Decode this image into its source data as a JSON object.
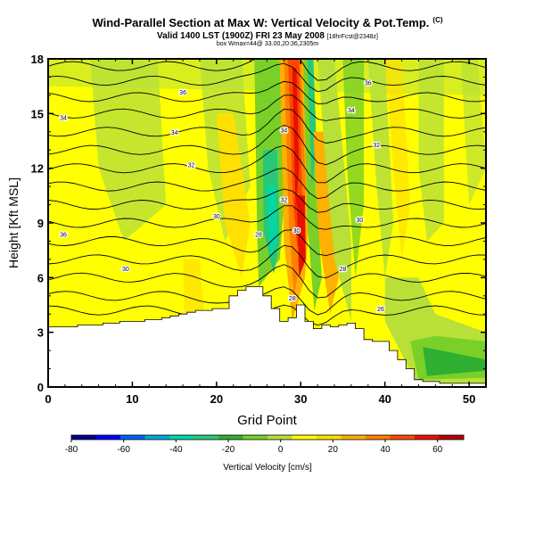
{
  "title": {
    "main": "Wind-Parallel Section at Max W: Vertical Velocity & Pot.Temp.",
    "copyright": "(C)",
    "valid": "Valid 1400 LST (1900Z) FRI 23 May 2008",
    "forecast": "[18hrFcst@2348z]",
    "location": "box Wmax=44@ 33.00,20:36,2305m"
  },
  "chart_data": {
    "type": "heatmap",
    "xlabel": "Grid Point",
    "ylabel": "Height [Kft MSL]",
    "xlim": [
      0,
      52
    ],
    "ylim": [
      0,
      18
    ],
    "xticks": [
      "0",
      "10",
      "20",
      "30",
      "40",
      "50"
    ],
    "yticks": [
      "0",
      "3",
      "6",
      "9",
      "12",
      "15",
      "18"
    ],
    "colorbar": {
      "label": "Vertical Velocity [cm/s]",
      "range": [
        -80,
        70
      ],
      "ticks": [
        "-80",
        "-60",
        "-40",
        "-20",
        "0",
        "20",
        "40",
        "60"
      ],
      "colors": [
        "#00008b",
        "#0000ff",
        "#0060ff",
        "#00a8d8",
        "#00d8a8",
        "#28c878",
        "#30b030",
        "#78d028",
        "#b8e038",
        "#ffff00",
        "#ffe000",
        "#ffb000",
        "#ff8000",
        "#ff4800",
        "#e81000",
        "#b80000"
      ]
    },
    "contour_labels": [
      {
        "x": 1.8,
        "y": 14.8,
        "text": "34"
      },
      {
        "x": 16,
        "y": 16.2,
        "text": "36"
      },
      {
        "x": 15,
        "y": 14.0,
        "text": "34"
      },
      {
        "x": 17,
        "y": 12.2,
        "text": "32"
      },
      {
        "x": 1.8,
        "y": 8.4,
        "text": "36"
      },
      {
        "x": 9.2,
        "y": 6.5,
        "text": "30"
      },
      {
        "x": 20,
        "y": 9.4,
        "text": "30"
      },
      {
        "x": 25,
        "y": 8.4,
        "text": "28"
      },
      {
        "x": 28,
        "y": 14.1,
        "text": "34"
      },
      {
        "x": 28,
        "y": 10.3,
        "text": "32"
      },
      {
        "x": 29.5,
        "y": 8.6,
        "text": "30"
      },
      {
        "x": 29,
        "y": 4.9,
        "text": "28"
      },
      {
        "x": 38,
        "y": 16.7,
        "text": "36"
      },
      {
        "x": 36,
        "y": 15.2,
        "text": "34"
      },
      {
        "x": 39,
        "y": 13.3,
        "text": "32"
      },
      {
        "x": 37,
        "y": 9.2,
        "text": "30"
      },
      {
        "x": 35,
        "y": 6.5,
        "text": "28"
      },
      {
        "x": 39.5,
        "y": 4.3,
        "text": "26"
      }
    ],
    "terrain_top_kft": [
      3.3,
      3.3,
      3.3,
      3.3,
      3.4,
      3.4,
      3.4,
      3.5,
      3.5,
      3.6,
      3.6,
      3.6,
      3.7,
      3.7,
      3.8,
      3.9,
      4.0,
      4.1,
      4.2,
      4.2,
      4.3,
      4.3,
      5.0,
      5.3,
      5.5,
      5.5,
      5.0,
      4.3,
      3.6,
      3.8,
      4.5,
      3.6,
      3.2,
      3.4,
      3.3,
      3.4,
      3.5,
      3.2,
      2.6,
      2.5,
      2.5,
      2.0,
      1.5,
      1.0,
      0.4,
      0.3,
      0.3,
      0.2,
      0.2,
      0.2,
      0.2,
      0.2,
      0.2
    ]
  }
}
